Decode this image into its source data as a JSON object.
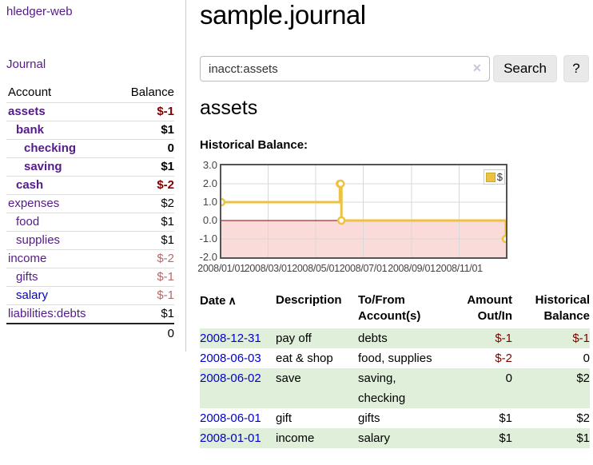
{
  "app": {
    "title": "hledger-web"
  },
  "sidebar": {
    "journal_link": "Journal",
    "table": {
      "headers": {
        "account": "Account",
        "balance": "Balance"
      },
      "rows": [
        {
          "name": "assets",
          "indent": 1,
          "bold": true,
          "link": "purple",
          "balance": "$-1",
          "balance_style": "neg-strong"
        },
        {
          "name": "bank",
          "indent": 2,
          "bold": true,
          "link": "purple",
          "balance": "$1",
          "balance_style": "plain-strong"
        },
        {
          "name": "checking",
          "indent": 3,
          "bold": true,
          "link": "purple",
          "balance": "0",
          "balance_style": "plain-strong"
        },
        {
          "name": "saving",
          "indent": 3,
          "bold": true,
          "link": "purple",
          "balance": "$1",
          "balance_style": "plain-strong"
        },
        {
          "name": "cash",
          "indent": 2,
          "bold": true,
          "link": "purple",
          "balance": "$-2",
          "balance_style": "neg-strong"
        },
        {
          "name": "expenses",
          "indent": 1,
          "bold": false,
          "link": "purple",
          "balance": "$2",
          "balance_style": "plain"
        },
        {
          "name": "food",
          "indent": 2,
          "bold": false,
          "link": "purple",
          "balance": "$1",
          "balance_style": "plain"
        },
        {
          "name": "supplies",
          "indent": 2,
          "bold": false,
          "link": "purple",
          "balance": "$1",
          "balance_style": "plain"
        },
        {
          "name": "income",
          "indent": 1,
          "bold": false,
          "link": "purple",
          "balance": "$-2",
          "balance_style": "neg-faded"
        },
        {
          "name": "gifts",
          "indent": 2,
          "bold": false,
          "link": "purple",
          "balance": "$-1",
          "balance_style": "neg-faded"
        },
        {
          "name": "salary",
          "indent": 2,
          "bold": false,
          "link": "blue",
          "balance": "$-1",
          "balance_style": "neg-faded"
        },
        {
          "name": "liabilities:debts",
          "indent": 1,
          "bold": false,
          "link": "purple",
          "balance": "$1",
          "balance_style": "plain"
        }
      ],
      "total": "0"
    }
  },
  "main": {
    "title": "sample.journal",
    "search": {
      "value": "inacct:assets",
      "clear_icon": "✕",
      "button": "Search",
      "help_button": "?"
    },
    "account_heading": "assets",
    "chart_label": "Historical Balance:"
  },
  "chart_data": {
    "type": "line",
    "title": "Historical Balance:",
    "steps": true,
    "grid": true,
    "legend_position": "top-right",
    "x_range": [
      "2008-01-01",
      "2008-12-31"
    ],
    "ylim": [
      -2,
      3
    ],
    "yticks": [
      {
        "v": 3,
        "label": "3.0"
      },
      {
        "v": 2,
        "label": "2.0"
      },
      {
        "v": 1,
        "label": "1.0"
      },
      {
        "v": 0,
        "label": "0.0"
      },
      {
        "v": -1,
        "label": "-1.0"
      },
      {
        "v": -2,
        "label": "-2.0"
      }
    ],
    "xticks": [
      {
        "date": "2008-01-01",
        "label": "2008/01/01"
      },
      {
        "date": "2008-03-01",
        "label": "2008/03/01"
      },
      {
        "date": "2008-05-01",
        "label": "2008/05/01"
      },
      {
        "date": "2008-07-01",
        "label": "2008/07/01"
      },
      {
        "date": "2008-09-01",
        "label": "2008/09/01"
      },
      {
        "date": "2008-11-01",
        "label": "2008/11/01"
      }
    ],
    "series": [
      {
        "name": "$",
        "color": "#EDC240",
        "points": [
          [
            "2008-01-01",
            1
          ],
          [
            "2008-06-01",
            2
          ],
          [
            "2008-06-02",
            2
          ],
          [
            "2008-06-03",
            0
          ],
          [
            "2008-12-31",
            -1
          ]
        ]
      }
    ],
    "negative_region_color": "#FBDADA",
    "zero_line_color": "#8B0000",
    "gridline_color": "#d8d8d8",
    "border_color": "#545454"
  },
  "register": {
    "columns": [
      "Date",
      "Description",
      "To/From Account(s)",
      "Amount Out/In",
      "Historical Balance"
    ],
    "sort_icon": "∧",
    "rows": [
      {
        "date": "2008-12-31",
        "description": "pay off",
        "accounts": "debts",
        "amount": "$-1",
        "amount_negative": true,
        "balance": "$-1",
        "balance_negative": true,
        "shaded": true
      },
      {
        "date": "2008-06-03",
        "description": "eat & shop",
        "accounts": "food, supplies",
        "amount": "$-2",
        "amount_negative": true,
        "balance": "0",
        "balance_negative": false,
        "shaded": false
      },
      {
        "date": "2008-06-02",
        "description": "save",
        "accounts": "saving, checking",
        "amount": "0",
        "amount_negative": false,
        "balance": "$2",
        "balance_negative": false,
        "shaded": true
      },
      {
        "date": "2008-06-01",
        "description": "gift",
        "accounts": "gifts",
        "amount": "$1",
        "amount_negative": false,
        "balance": "$2",
        "balance_negative": false,
        "shaded": false
      },
      {
        "date": "2008-01-01",
        "description": "income",
        "accounts": "salary",
        "amount": "$1",
        "amount_negative": false,
        "balance": "$1",
        "balance_negative": false,
        "shaded": true
      }
    ]
  },
  "colors": {
    "link_purple": "#551A8B",
    "link_blue": "#0000DD",
    "negative_red": "#800000",
    "negative_faded": "#B36A6A",
    "row_green": "#e0efda",
    "series_gold": "#EDC240"
  }
}
